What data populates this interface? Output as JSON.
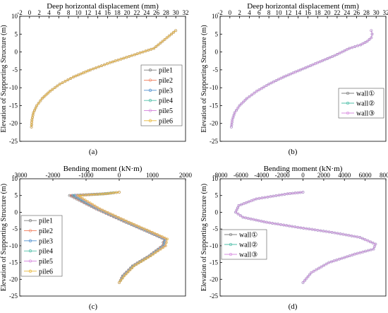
{
  "panel_labels": [
    "(a)",
    "(b)",
    "(c)",
    "(d)"
  ],
  "chart_data": [
    {
      "type": "line",
      "panel": "(a)",
      "title": "Deep horizontal displacement (mm)",
      "ylabel": "Elevation of Supporting Structure (m)",
      "xlim": [
        -2,
        32
      ],
      "ylim": [
        -25,
        10
      ],
      "xticks": [
        -2,
        0,
        2,
        4,
        6,
        8,
        10,
        12,
        14,
        16,
        18,
        20,
        22,
        24,
        26,
        28,
        30,
        32
      ],
      "yticks": [
        10,
        5,
        0,
        -5,
        -10,
        -15,
        -20,
        -25
      ],
      "legend_position": "right",
      "series": [
        {
          "name": "pile1",
          "color": "#7f7f7f",
          "x": [
            0.4,
            0.5,
            0.8,
            1.5,
            2.6,
            4.2,
            6.2,
            9.0,
            12.5,
            16.5,
            21.0,
            25.5,
            30.0
          ],
          "y": [
            -21,
            -19,
            -17,
            -15,
            -13,
            -11,
            -9,
            -7,
            -5,
            -3,
            -1,
            1,
            6
          ]
        },
        {
          "name": "pile2",
          "color": "#f28b6e",
          "x": [
            0.4,
            0.5,
            0.8,
            1.5,
            2.6,
            4.2,
            6.2,
            9.0,
            12.5,
            16.5,
            21.0,
            25.5,
            30.0
          ],
          "y": [
            -21,
            -19,
            -17,
            -15,
            -13,
            -11,
            -9,
            -7,
            -5,
            -3,
            -1,
            1,
            6
          ]
        },
        {
          "name": "pile3",
          "color": "#4f8fcf",
          "x": [
            0.4,
            0.5,
            0.8,
            1.5,
            2.6,
            4.2,
            6.2,
            9.0,
            12.5,
            16.5,
            21.0,
            25.5,
            30.0
          ],
          "y": [
            -21,
            -19,
            -17,
            -15,
            -13,
            -11,
            -9,
            -7,
            -5,
            -3,
            -1,
            1,
            6
          ]
        },
        {
          "name": "pile4",
          "color": "#4fbfa8",
          "x": [
            0.4,
            0.5,
            0.8,
            1.5,
            2.6,
            4.2,
            6.2,
            9.0,
            12.5,
            16.5,
            21.0,
            25.5,
            30.0
          ],
          "y": [
            -21,
            -19,
            -17,
            -15,
            -13,
            -11,
            -9,
            -7,
            -5,
            -3,
            -1,
            1,
            6
          ]
        },
        {
          "name": "pile5",
          "color": "#d98fe0",
          "x": [
            0.4,
            0.5,
            0.8,
            1.5,
            2.6,
            4.2,
            6.2,
            9.0,
            12.5,
            16.5,
            21.0,
            25.5,
            30.0
          ],
          "y": [
            -21,
            -19,
            -17,
            -15,
            -13,
            -11,
            -9,
            -7,
            -5,
            -3,
            -1,
            1,
            6
          ]
        },
        {
          "name": "pile6",
          "color": "#e8b83a",
          "x": [
            0.4,
            0.5,
            0.8,
            1.5,
            2.6,
            4.2,
            6.2,
            9.0,
            12.5,
            16.5,
            21.0,
            25.5,
            30.0
          ],
          "y": [
            -21,
            -19,
            -17,
            -15,
            -13,
            -11,
            -9,
            -7,
            -5,
            -3,
            -1,
            1,
            6
          ]
        }
      ]
    },
    {
      "type": "line",
      "panel": "(b)",
      "title": "Deep horizontal displacement (mm)",
      "ylabel": "Elevation of Supporting Structure (m)",
      "xlim": [
        -2,
        32
      ],
      "ylim": [
        -25,
        10
      ],
      "xticks": [
        -2,
        0,
        2,
        4,
        6,
        8,
        10,
        12,
        14,
        16,
        18,
        20,
        22,
        24,
        26,
        28,
        30,
        32
      ],
      "yticks": [
        10,
        5,
        0,
        -5,
        -10,
        -15,
        -20,
        -25
      ],
      "legend_position": "right",
      "series": [
        {
          "name": "wall①",
          "color": "#7f7f7f",
          "x": [
            0.3,
            0.5,
            1.0,
            2.0,
            3.5,
            5.5,
            8.0,
            11.0,
            14.5,
            18.0,
            21.5,
            24.5,
            26.8,
            28.2,
            29.0,
            29.2,
            29.0
          ],
          "y": [
            -21,
            -19,
            -17,
            -15,
            -13,
            -11,
            -9,
            -7,
            -5,
            -3,
            -1,
            1,
            2,
            3,
            4,
            5,
            6
          ]
        },
        {
          "name": "wall②",
          "color": "#4fbfa8",
          "x": [
            0.3,
            0.5,
            1.0,
            2.0,
            3.5,
            5.5,
            8.0,
            11.0,
            14.5,
            18.0,
            21.5,
            24.5,
            26.8,
            28.2,
            29.0,
            29.2,
            29.0
          ],
          "y": [
            -21,
            -19,
            -17,
            -15,
            -13,
            -11,
            -9,
            -7,
            -5,
            -3,
            -1,
            1,
            2,
            3,
            4,
            5,
            6
          ]
        },
        {
          "name": "wall③",
          "color": "#d98fe0",
          "x": [
            0.3,
            0.5,
            1.0,
            2.0,
            3.5,
            5.5,
            8.0,
            11.0,
            14.5,
            18.0,
            21.5,
            24.5,
            26.8,
            28.2,
            29.0,
            29.2,
            29.0
          ],
          "y": [
            -21,
            -19,
            -17,
            -15,
            -13,
            -11,
            -9,
            -7,
            -5,
            -3,
            -1,
            1,
            2,
            3,
            4,
            5,
            6
          ]
        }
      ]
    },
    {
      "type": "line",
      "panel": "(c)",
      "title": "Bending moment (kN·m)",
      "ylabel": "Elevation of Supporting Structure (m)",
      "xlim": [
        -3000,
        2000
      ],
      "ylim": [
        -25,
        10
      ],
      "xticks": [
        -3000,
        -2000,
        -1000,
        0,
        1000,
        2000
      ],
      "yticks": [
        10,
        5,
        0,
        -5,
        -10,
        -15,
        -20,
        -25
      ],
      "legend_position": "left",
      "series": [
        {
          "name": "pile1",
          "color": "#7f7f7f",
          "x": [
            0,
            -500,
            -1500,
            -700,
            200,
            900,
            1350,
            1300,
            900,
            400,
            100,
            0
          ],
          "y": [
            6,
            5.5,
            5,
            1,
            -3,
            -6,
            -8,
            -10,
            -13,
            -16,
            -19,
            -21
          ]
        },
        {
          "name": "pile2",
          "color": "#f28b6e",
          "x": [
            0,
            -500,
            -1450,
            -680,
            220,
            920,
            1370,
            1320,
            910,
            410,
            110,
            0
          ],
          "y": [
            6,
            5.5,
            5,
            1,
            -3,
            -6,
            -8,
            -10,
            -13,
            -16,
            -19,
            -21
          ]
        },
        {
          "name": "pile3",
          "color": "#4f8fcf",
          "x": [
            0,
            -450,
            -1400,
            -650,
            240,
            940,
            1380,
            1340,
            920,
            420,
            120,
            0
          ],
          "y": [
            6,
            5.5,
            5,
            1,
            -3,
            -6,
            -8,
            -10,
            -13,
            -16,
            -19,
            -21
          ]
        },
        {
          "name": "pile4",
          "color": "#4fbfa8",
          "x": [
            0,
            -450,
            -1350,
            -620,
            260,
            960,
            1400,
            1360,
            930,
            430,
            130,
            0
          ],
          "y": [
            6,
            5.5,
            5,
            1,
            -3,
            -6,
            -8,
            -10,
            -13,
            -16,
            -19,
            -21
          ]
        },
        {
          "name": "pile5",
          "color": "#d98fe0",
          "x": [
            0,
            -400,
            -1300,
            -600,
            280,
            980,
            1420,
            1380,
            940,
            440,
            140,
            0
          ],
          "y": [
            6,
            5.5,
            5,
            1,
            -3,
            -6,
            -8,
            -10,
            -13,
            -16,
            -19,
            -21
          ]
        },
        {
          "name": "pile6",
          "color": "#e8b83a",
          "x": [
            0,
            -400,
            -1250,
            -580,
            300,
            1000,
            1450,
            1400,
            950,
            450,
            150,
            0
          ],
          "y": [
            6,
            5.5,
            5,
            1,
            -3,
            -6,
            -8,
            -10,
            -13,
            -16,
            -19,
            -21
          ]
        }
      ]
    },
    {
      "type": "line",
      "panel": "(d)",
      "title": "Bending moment (kN·m)",
      "ylabel": "Elevation of Supporting Structure (m)",
      "xlim": [
        -8000,
        8000
      ],
      "ylim": [
        -25,
        10
      ],
      "xticks": [
        -8000,
        -6000,
        -4000,
        -2000,
        0,
        2000,
        4000,
        6000,
        8000
      ],
      "yticks": [
        10,
        5,
        0,
        -5,
        -10,
        -15,
        -20,
        -25
      ],
      "legend_position": "left",
      "series": [
        {
          "name": "wall①",
          "color": "#7f7f7f",
          "x": [
            0,
            -1500,
            -4500,
            -6200,
            -6500,
            -5800,
            -3500,
            -500,
            2800,
            5500,
            7000,
            6800,
            5000,
            2500,
            800,
            0
          ],
          "y": [
            6,
            5.5,
            4,
            2,
            0,
            -1.5,
            -3,
            -4.5,
            -6,
            -7.5,
            -9.5,
            -11,
            -12.5,
            -15,
            -18,
            -21
          ]
        },
        {
          "name": "wall②",
          "color": "#4fbfa8",
          "x": [
            0,
            -1500,
            -4500,
            -6200,
            -6500,
            -5800,
            -3500,
            -500,
            2800,
            5500,
            7000,
            6800,
            5000,
            2500,
            800,
            0
          ],
          "y": [
            6,
            5.5,
            4,
            2,
            0,
            -1.5,
            -3,
            -4.5,
            -6,
            -7.5,
            -9.5,
            -11,
            -12.5,
            -15,
            -18,
            -21
          ]
        },
        {
          "name": "wall③",
          "color": "#d98fe0",
          "x": [
            0,
            -1500,
            -4500,
            -6200,
            -6500,
            -5800,
            -3500,
            -500,
            2800,
            5500,
            7000,
            6800,
            5000,
            2500,
            800,
            0
          ],
          "y": [
            6,
            5.5,
            4,
            2,
            0,
            -1.5,
            -3,
            -4.5,
            -6,
            -7.5,
            -9.5,
            -11,
            -12.5,
            -15,
            -18,
            -21
          ]
        }
      ]
    }
  ]
}
